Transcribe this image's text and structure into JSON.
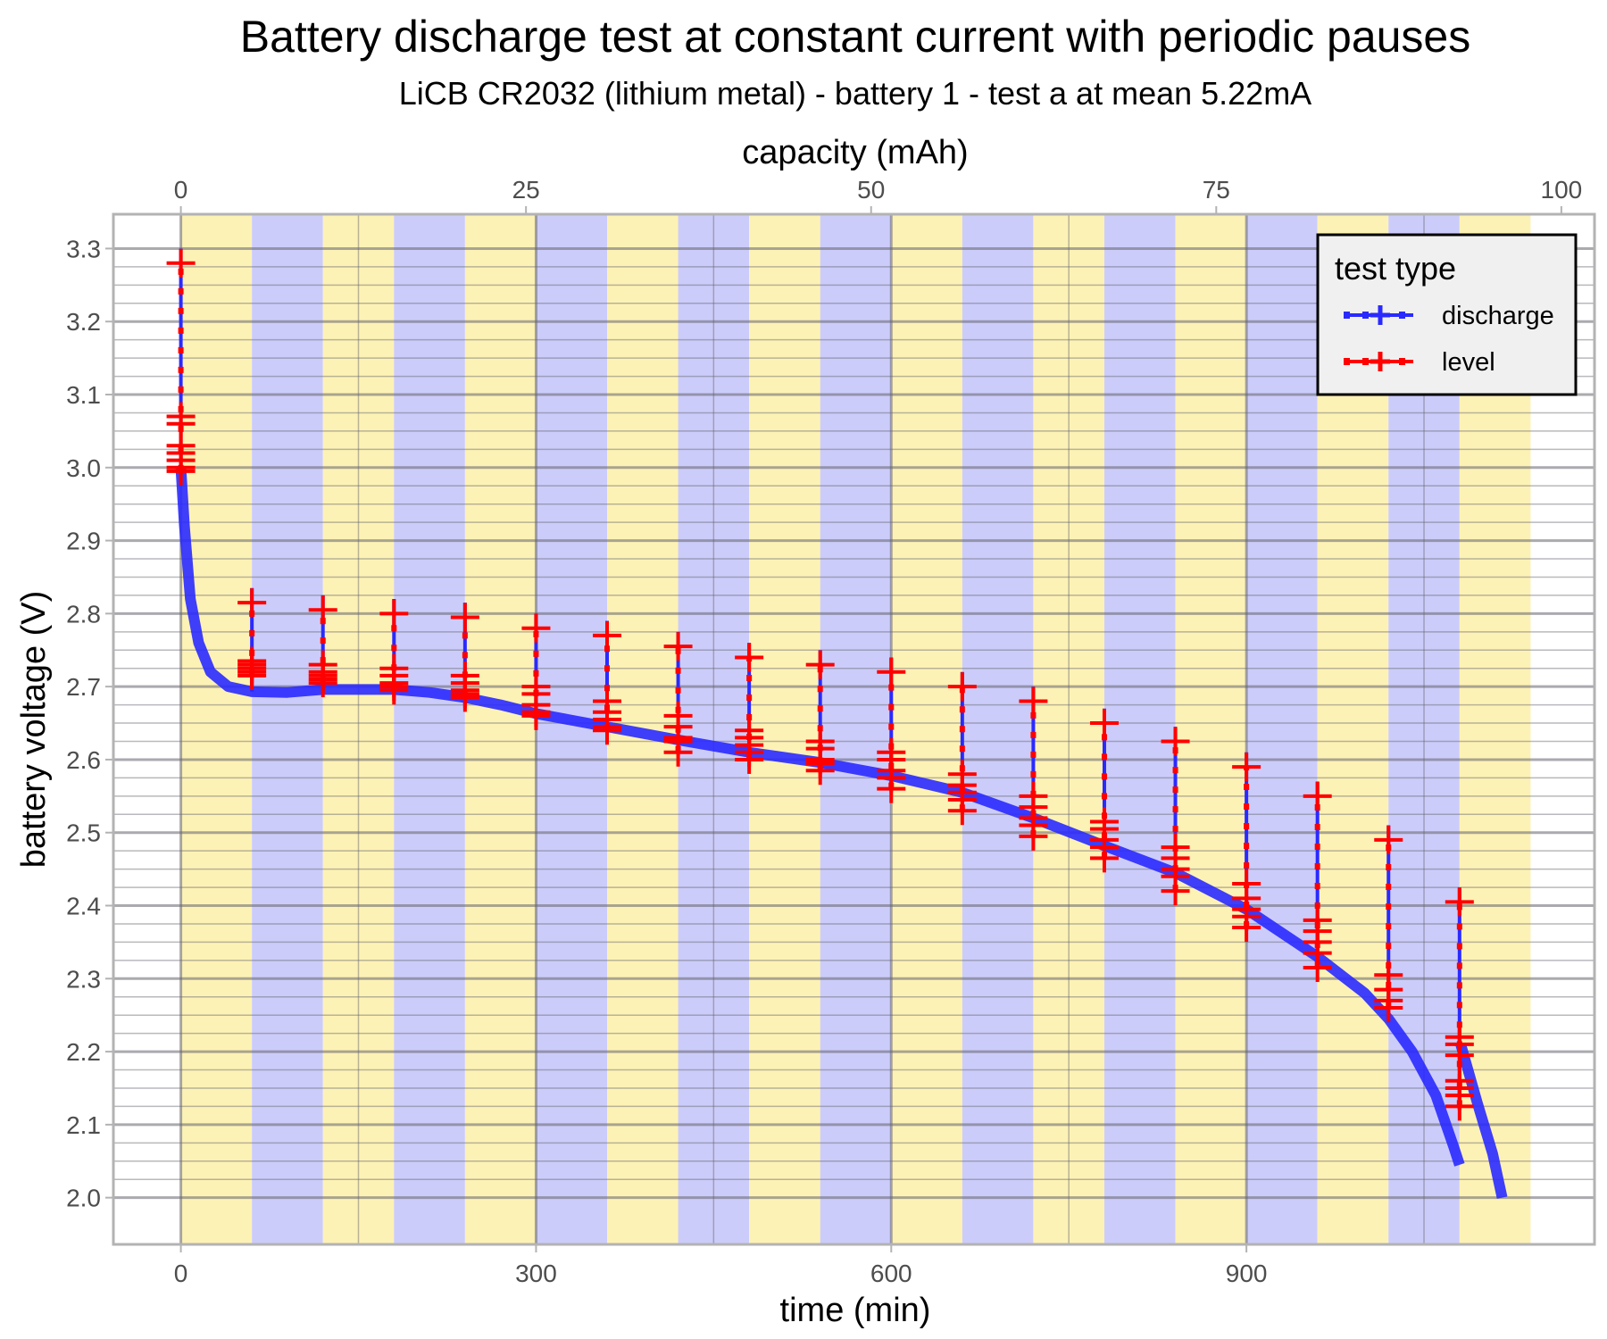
{
  "chart_data": {
    "type": "line",
    "title": "Battery discharge test at constant current with periodic pauses",
    "subtitle": "LiCB CR2032 (lithium metal) - battery 1 - test a at mean 5.22mA",
    "xlabel": "time (min)",
    "ylabel": "battery voltage (V)",
    "x2label": "capacity (mAh)",
    "xlim": [
      -57,
      1194
    ],
    "ylim": [
      1.936,
      3.347
    ],
    "x_ticks": [
      "0",
      "300",
      "600",
      "900"
    ],
    "x_tick_values": [
      0,
      300,
      600,
      900
    ],
    "x2_ticks": [
      "0",
      "25",
      "50",
      "75",
      "100"
    ],
    "x2_tick_values": [
      0,
      25,
      50,
      75,
      100
    ],
    "x2_minutes_per_100mAh": 1166,
    "y_ticks": [
      "2.0",
      "2.1",
      "2.2",
      "2.3",
      "2.4",
      "2.5",
      "2.6",
      "2.7",
      "2.8",
      "2.9",
      "3.0",
      "3.1",
      "3.2",
      "3.3"
    ],
    "y_tick_values": [
      2.0,
      2.1,
      2.2,
      2.3,
      2.4,
      2.5,
      2.6,
      2.7,
      2.8,
      2.9,
      3.0,
      3.1,
      3.2,
      3.3
    ],
    "grid": true,
    "background_bands": {
      "period_min": 60,
      "count": 19,
      "colors": [
        "#fdf2b5",
        "#ccccfa"
      ]
    },
    "legend": {
      "title": "test type",
      "position": "top-right",
      "entries": [
        {
          "label": "discharge",
          "color": "#2a2aff"
        },
        {
          "label": "level",
          "color": "#ff0000"
        }
      ]
    },
    "series": [
      {
        "name": "discharge",
        "color": "#2a2aff",
        "segments": [
          [
            [
              0,
              3.0
            ],
            [
              3,
              2.92
            ],
            [
              8,
              2.82
            ],
            [
              15,
              2.76
            ],
            [
              25,
              2.72
            ],
            [
              40,
              2.7
            ],
            [
              60,
              2.693
            ],
            [
              90,
              2.692
            ],
            [
              120,
              2.696
            ],
            [
              180,
              2.696
            ],
            [
              210,
              2.692
            ],
            [
              240,
              2.685
            ],
            [
              270,
              2.675
            ],
            [
              300,
              2.663
            ],
            [
              360,
              2.645
            ],
            [
              420,
              2.627
            ],
            [
              480,
              2.61
            ],
            [
              540,
              2.596
            ],
            [
              600,
              2.578
            ],
            [
              660,
              2.555
            ],
            [
              720,
              2.52
            ],
            [
              780,
              2.482
            ],
            [
              840,
              2.445
            ],
            [
              900,
              2.395
            ],
            [
              960,
              2.33
            ],
            [
              1000,
              2.28
            ],
            [
              1020,
              2.245
            ],
            [
              1040,
              2.2
            ],
            [
              1060,
              2.14
            ],
            [
              1075,
              2.07
            ],
            [
              1080,
              2.045
            ]
          ],
          [
            [
              1081,
              2.21
            ],
            [
              1095,
              2.13
            ],
            [
              1108,
              2.06
            ],
            [
              1116,
              2.0
            ]
          ]
        ]
      },
      {
        "name": "level",
        "color": "#ff0000",
        "pauses": [
          {
            "time": 0,
            "base": 2.99,
            "peak": 3.28,
            "levels": [
              3.07,
              3.06,
              3.03,
              3.02,
              3.01,
              3.0,
              2.995
            ]
          },
          {
            "time": 60,
            "base": 2.693,
            "peak": 2.815,
            "levels": [
              2.735,
              2.73,
              2.725,
              2.72,
              2.715
            ]
          },
          {
            "time": 120,
            "base": 2.694,
            "peak": 2.805,
            "levels": [
              2.73,
              2.72,
              2.715,
              2.71,
              2.705
            ]
          },
          {
            "time": 180,
            "base": 2.694,
            "peak": 2.8,
            "levels": [
              2.725,
              2.715,
              2.705,
              2.7,
              2.695
            ]
          },
          {
            "time": 240,
            "base": 2.685,
            "peak": 2.795,
            "levels": [
              2.715,
              2.705,
              2.695,
              2.69,
              2.685
            ]
          },
          {
            "time": 300,
            "base": 2.663,
            "peak": 2.78,
            "levels": [
              2.7,
              2.69,
              2.675,
              2.665,
              2.66
            ]
          },
          {
            "time": 360,
            "base": 2.645,
            "peak": 2.77,
            "levels": [
              2.68,
              2.665,
              2.655,
              2.645,
              2.64
            ]
          },
          {
            "time": 420,
            "base": 2.625,
            "peak": 2.755,
            "levels": [
              2.66,
              2.645,
              2.63,
              2.625,
              2.61
            ]
          },
          {
            "time": 480,
            "base": 2.61,
            "peak": 2.74,
            "levels": [
              2.64,
              2.63,
              2.62,
              2.61,
              2.6
            ]
          },
          {
            "time": 540,
            "base": 2.595,
            "peak": 2.73,
            "levels": [
              2.625,
              2.615,
              2.6,
              2.595,
              2.585
            ]
          },
          {
            "time": 600,
            "base": 2.575,
            "peak": 2.72,
            "levels": [
              2.61,
              2.6,
              2.585,
              2.575,
              2.56
            ]
          },
          {
            "time": 660,
            "base": 2.55,
            "peak": 2.7,
            "levels": [
              2.58,
              2.565,
              2.555,
              2.545,
              2.53
            ]
          },
          {
            "time": 720,
            "base": 2.515,
            "peak": 2.68,
            "levels": [
              2.55,
              2.535,
              2.52,
              2.51,
              2.495
            ]
          },
          {
            "time": 780,
            "base": 2.48,
            "peak": 2.65,
            "levels": [
              2.515,
              2.505,
              2.49,
              2.48,
              2.465
            ]
          },
          {
            "time": 840,
            "base": 2.44,
            "peak": 2.625,
            "levels": [
              2.48,
              2.465,
              2.45,
              2.44,
              2.42
            ]
          },
          {
            "time": 900,
            "base": 2.385,
            "peak": 2.59,
            "levels": [
              2.43,
              2.41,
              2.395,
              2.385,
              2.37
            ]
          },
          {
            "time": 960,
            "base": 2.32,
            "peak": 2.55,
            "levels": [
              2.38,
              2.365,
              2.35,
              2.335,
              2.315
            ]
          },
          {
            "time": 1020,
            "base": 2.24,
            "peak": 2.49,
            "levels": [
              2.305,
              2.285,
              2.27,
              2.26
            ]
          },
          {
            "time": 1080,
            "base": 2.12,
            "peak": 2.405,
            "levels": [
              2.22,
              2.21,
              2.195,
              2.16,
              2.15,
              2.14,
              2.125
            ]
          }
        ]
      }
    ]
  }
}
